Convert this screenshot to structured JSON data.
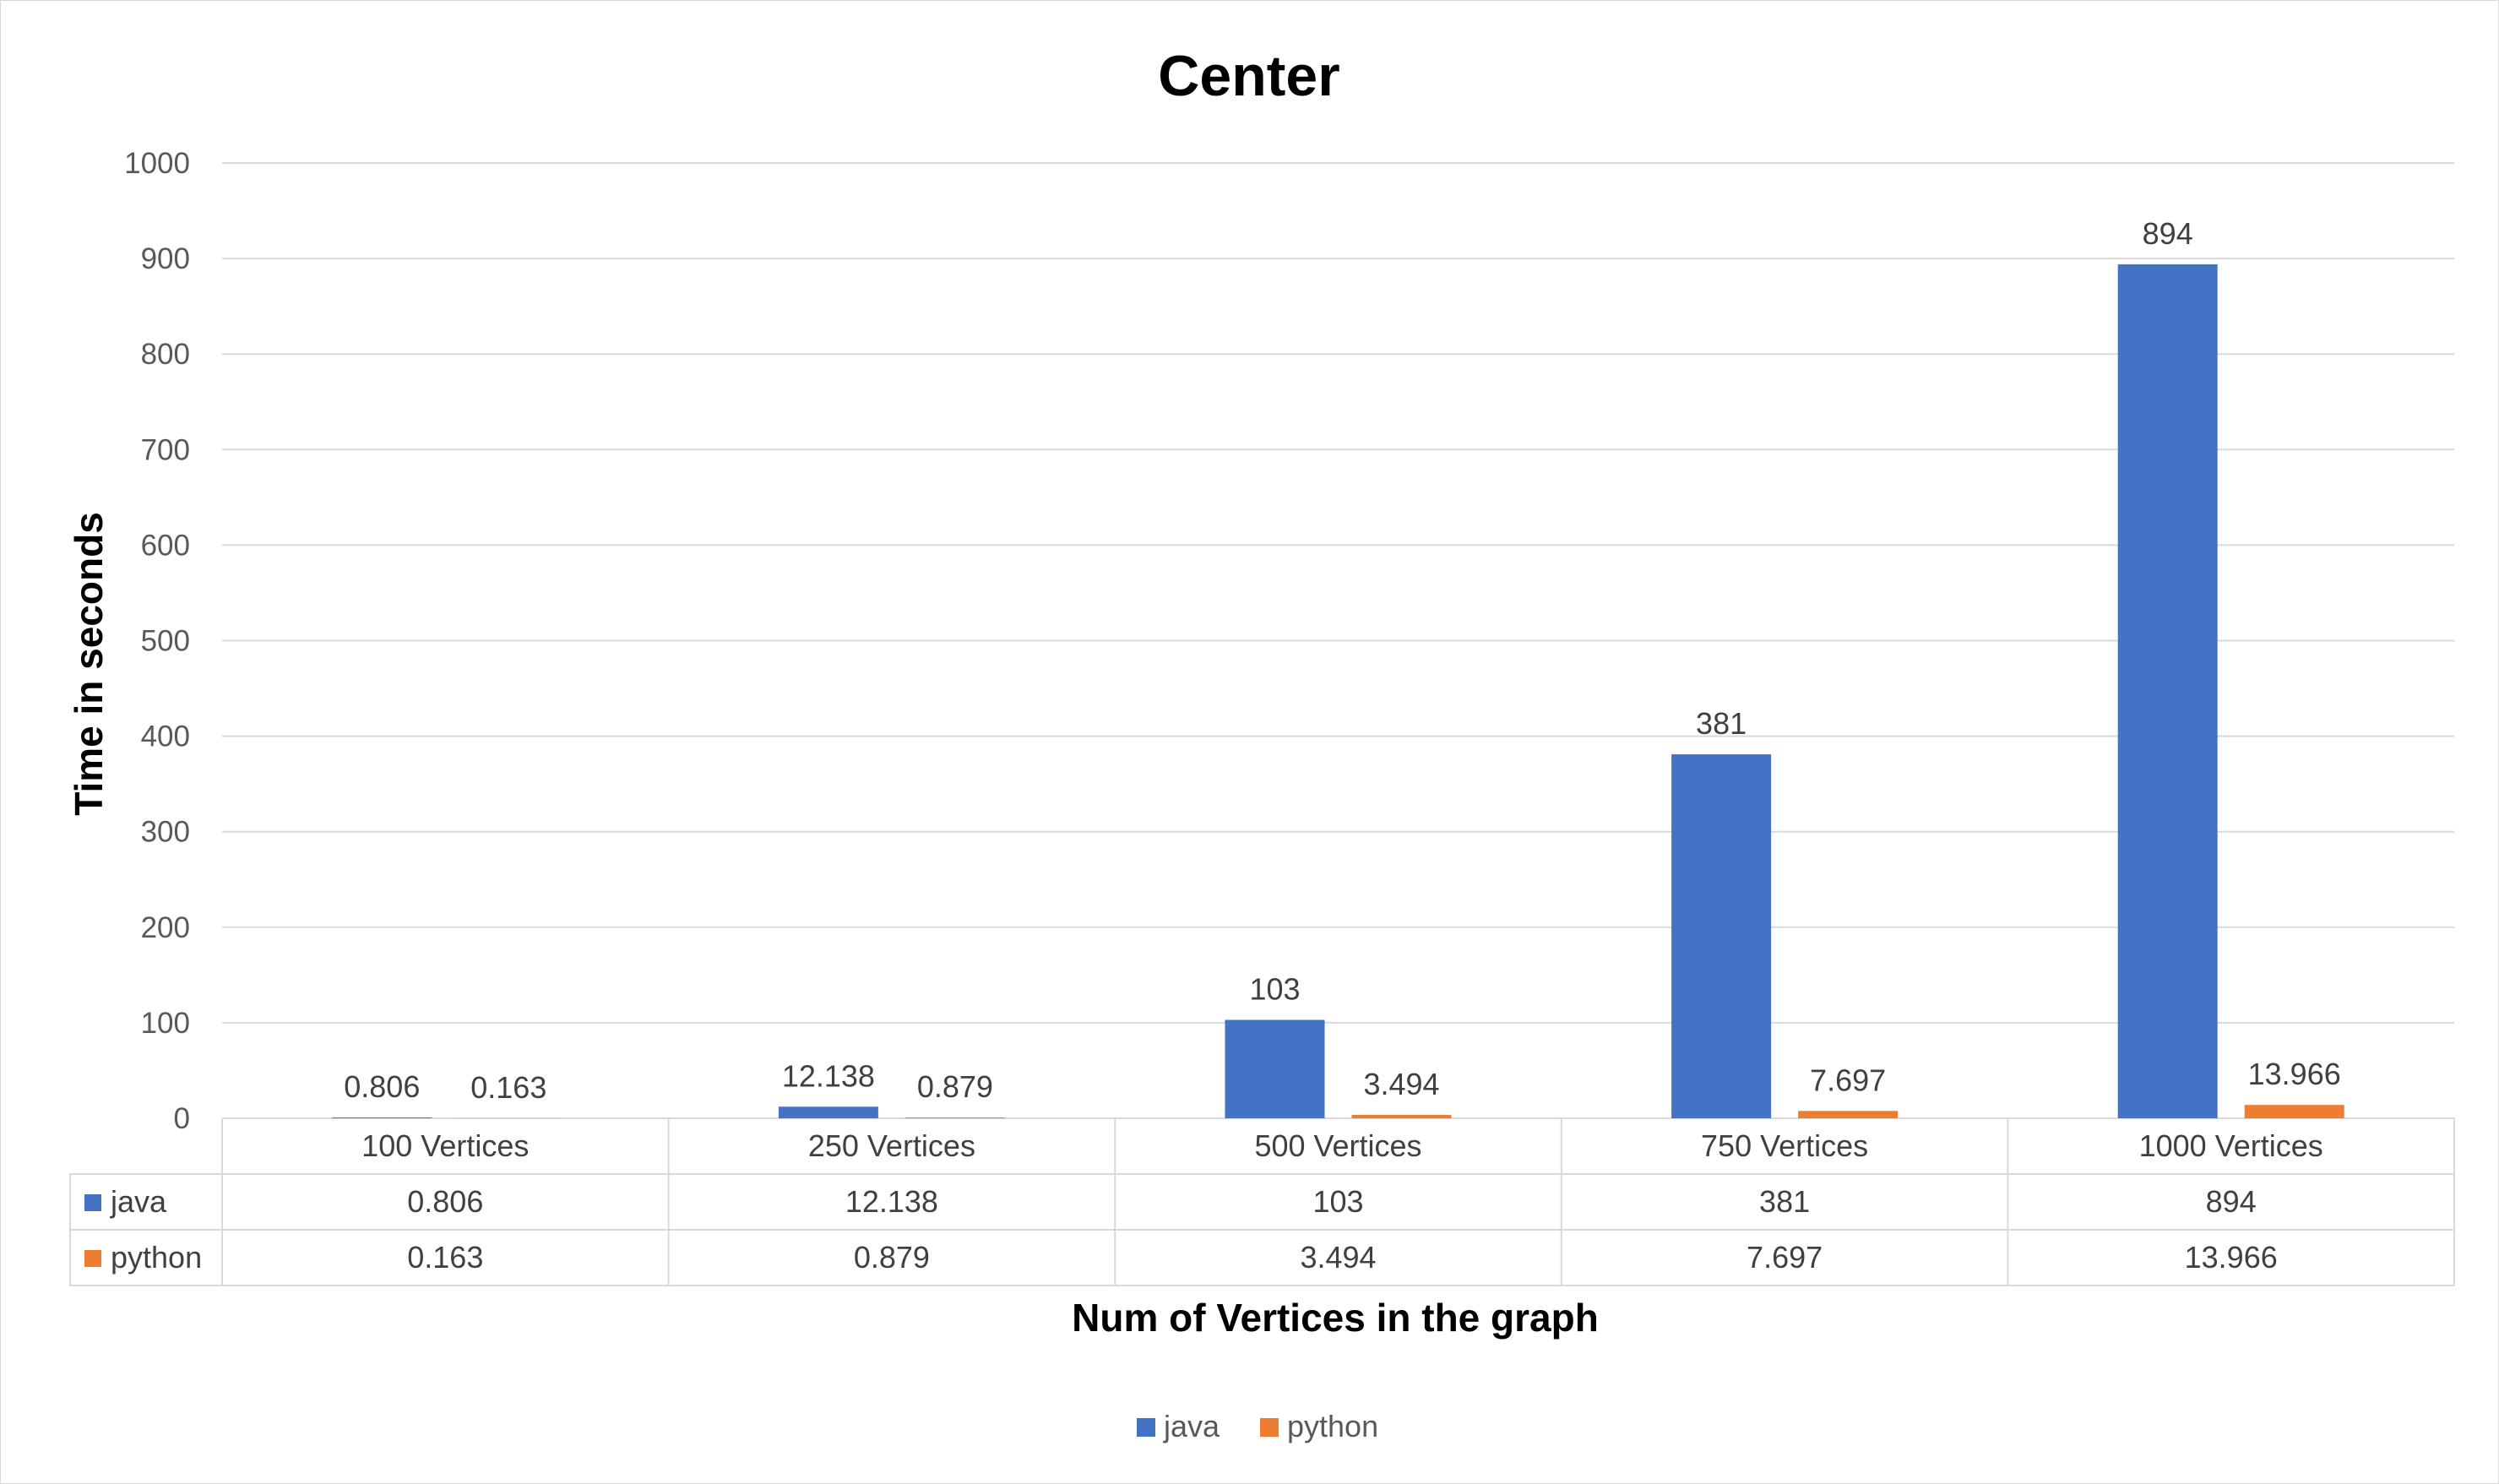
{
  "chart_data": {
    "type": "bar",
    "title": "Center",
    "xlabel": "Num of Vertices in the graph",
    "ylabel": "Time in seconds",
    "categories": [
      "100 Vertices",
      "250 Vertices",
      "500 Vertices",
      "750 Vertices",
      "1000 Vertices"
    ],
    "series": [
      {
        "name": "java",
        "color": "#4472C4",
        "values": [
          0.806,
          12.138,
          103,
          381,
          894
        ],
        "labels": [
          "0.806",
          "12.138",
          "103",
          "381",
          "894"
        ]
      },
      {
        "name": "python",
        "color": "#ED7D31",
        "values": [
          0.163,
          0.879,
          3.494,
          7.697,
          13.966
        ],
        "labels": [
          "0.163",
          "0.879",
          "3.494",
          "7.697",
          "13.966"
        ]
      }
    ],
    "ylim": [
      0,
      1000
    ],
    "yticks": [
      "0",
      "100",
      "200",
      "300",
      "400",
      "500",
      "600",
      "700",
      "800",
      "900",
      "1000"
    ],
    "grid": true,
    "data_table": true,
    "legend_position": "bottom"
  }
}
